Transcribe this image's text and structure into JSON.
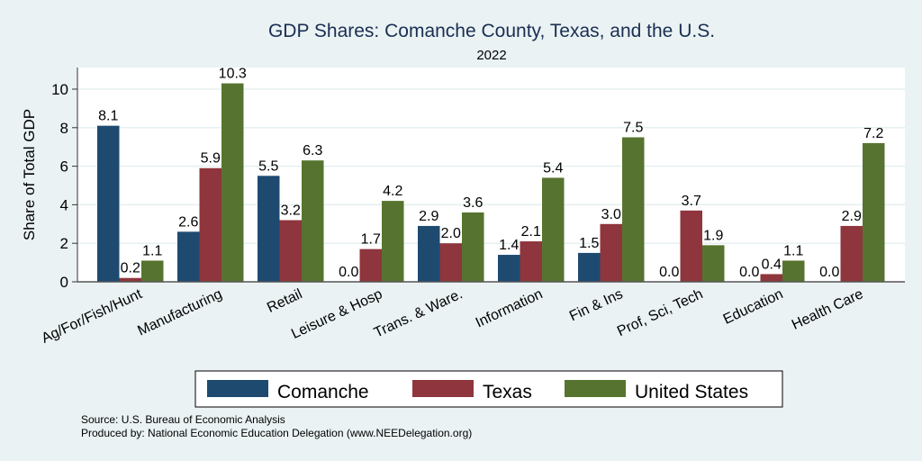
{
  "chart_data": {
    "type": "bar",
    "title": "GDP Shares: Comanche County, Texas, and the U.S.",
    "subtitle": "2022",
    "xlabel": "",
    "ylabel": "Share of Total GDP",
    "ylim": [
      0,
      11
    ],
    "yticks": [
      0,
      2,
      4,
      6,
      8,
      10
    ],
    "grid": true,
    "legend_position": "bottom",
    "categories": [
      "Ag/For/Fish/Hunt",
      "Manufacturing",
      "Retail",
      "Leisure & Hosp",
      "Trans. & Ware.",
      "Information",
      "Fin & Ins",
      "Prof, Sci, Tech",
      "Education",
      "Health Care"
    ],
    "series": [
      {
        "name": "Comanche",
        "color": "#1f4a70",
        "values": [
          8.1,
          2.6,
          5.5,
          0.0,
          2.9,
          1.4,
          1.5,
          0.0,
          0.0,
          0.0
        ]
      },
      {
        "name": "Texas",
        "color": "#8f353d",
        "values": [
          0.2,
          5.9,
          3.2,
          1.7,
          2.0,
          2.1,
          3.0,
          3.7,
          0.4,
          2.9
        ]
      },
      {
        "name": "United States",
        "color": "#56742f",
        "values": [
          1.1,
          10.3,
          6.3,
          4.2,
          3.6,
          5.4,
          7.5,
          1.9,
          1.1,
          7.2
        ]
      }
    ],
    "value_label_format": "0.0",
    "notes": [
      "Source: U.S. Bureau of Economic Analysis",
      "Produced by: National Economic Education Delegation (www.NEEDelegation.org)"
    ]
  }
}
